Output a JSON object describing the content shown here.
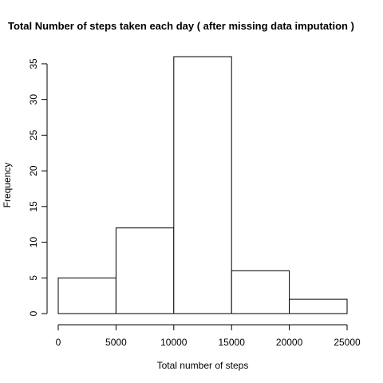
{
  "chart_data": {
    "type": "bar",
    "subtype": "histogram",
    "title": "Total Number of steps taken each day ( after missing data imputation )",
    "xlabel": "Total number of steps",
    "ylabel": "Frequency",
    "bins": [
      {
        "from": 0,
        "to": 5000,
        "count": 5
      },
      {
        "from": 5000,
        "to": 10000,
        "count": 12
      },
      {
        "from": 10000,
        "to": 15000,
        "count": 36
      },
      {
        "from": 15000,
        "to": 20000,
        "count": 6
      },
      {
        "from": 20000,
        "to": 25000,
        "count": 2
      }
    ],
    "xlim": [
      0,
      25000
    ],
    "ylim": [
      0,
      36
    ],
    "xticks": [
      0,
      5000,
      10000,
      15000,
      20000,
      25000
    ],
    "yticks": [
      0,
      5,
      10,
      15,
      20,
      25,
      30,
      35
    ],
    "grid": false,
    "colors": {
      "bar_fill": "#ffffff",
      "bar_stroke": "#000000"
    }
  }
}
